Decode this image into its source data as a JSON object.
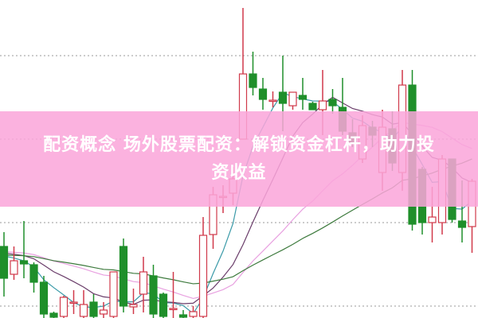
{
  "headline": {
    "line1": "配资概念 场外股票配资：解锁资金杠杆，助力投",
    "line2": "资收益"
  },
  "colors": {
    "up": "#d0394a",
    "down": "#1f8f2a",
    "banner": "#f9a5da",
    "ma_short": "#3a9aa8",
    "ma_mid": "#6a3d6a",
    "ma_long": "#e8a0e0",
    "ma_longest": "#3d7a3d"
  },
  "chart_data": {
    "type": "candlestick",
    "title": "",
    "xlabel": "",
    "ylabel": "",
    "axis_labels_shown": false,
    "grid": "horizontal dotted",
    "grid_levels": [
      330,
      225,
      120,
      15
    ],
    "ylim": [
      0,
      400
    ],
    "ohlc_columns": [
      "open",
      "close",
      "high",
      "low"
    ],
    "candles": [
      [
        90,
        50,
        108,
        27
      ],
      [
        55,
        72,
        90,
        48
      ],
      [
        72,
        68,
        122,
        50
      ],
      [
        67,
        45,
        70,
        32
      ],
      [
        45,
        5,
        53,
        0
      ],
      [
        6,
        1,
        8,
        0
      ],
      [
        2,
        26,
        28,
        0
      ],
      [
        20,
        20,
        35,
        5
      ],
      [
        2,
        17,
        35,
        0
      ],
      [
        20,
        2,
        30,
        0
      ],
      [
        5,
        10,
        20,
        0
      ],
      [
        2,
        58,
        58,
        0
      ],
      [
        90,
        15,
        100,
        7
      ],
      [
        14,
        17,
        37,
        5
      ],
      [
        30,
        58,
        77,
        7
      ],
      [
        53,
        5,
        67,
        0
      ],
      [
        30,
        2,
        32,
        0
      ],
      [
        12,
        12,
        58,
        0
      ],
      [
        4,
        1,
        10,
        0
      ],
      [
        2,
        8,
        15,
        0
      ],
      [
        2,
        104,
        127,
        0
      ],
      [
        105,
        155,
        165,
        87
      ],
      [
        153,
        153,
        167,
        132
      ],
      [
        157,
        175,
        190,
        142
      ],
      [
        225,
        307,
        390,
        225
      ],
      [
        307,
        290,
        335,
        280
      ],
      [
        288,
        275,
        302,
        262
      ],
      [
        274,
        274,
        285,
        265
      ],
      [
        284,
        270,
        330,
        235
      ],
      [
        267,
        284,
        284,
        262
      ],
      [
        280,
        275,
        302,
        262
      ],
      [
        270,
        262,
        272,
        262
      ],
      [
        262,
        273,
        312,
        230
      ],
      [
        275,
        267,
        288,
        257
      ],
      [
        265,
        235,
        302,
        230
      ],
      [
        233,
        220,
        250,
        215
      ],
      [
        200,
        242,
        255,
        195
      ],
      [
        240,
        230,
        248,
        215
      ],
      [
        183,
        240,
        262,
        160
      ],
      [
        238,
        195,
        260,
        185
      ],
      [
        183,
        293,
        312,
        160
      ],
      [
        293,
        118,
        312,
        110
      ],
      [
        187,
        120,
        190,
        105
      ],
      [
        120,
        127,
        165,
        95
      ],
      [
        120,
        200,
        205,
        105
      ],
      [
        200,
        124,
        200,
        120
      ],
      [
        122,
        114,
        173,
        95
      ],
      [
        115,
        172,
        175,
        82
      ]
    ],
    "moving_averages": [
      5,
      10,
      20,
      30
    ]
  }
}
